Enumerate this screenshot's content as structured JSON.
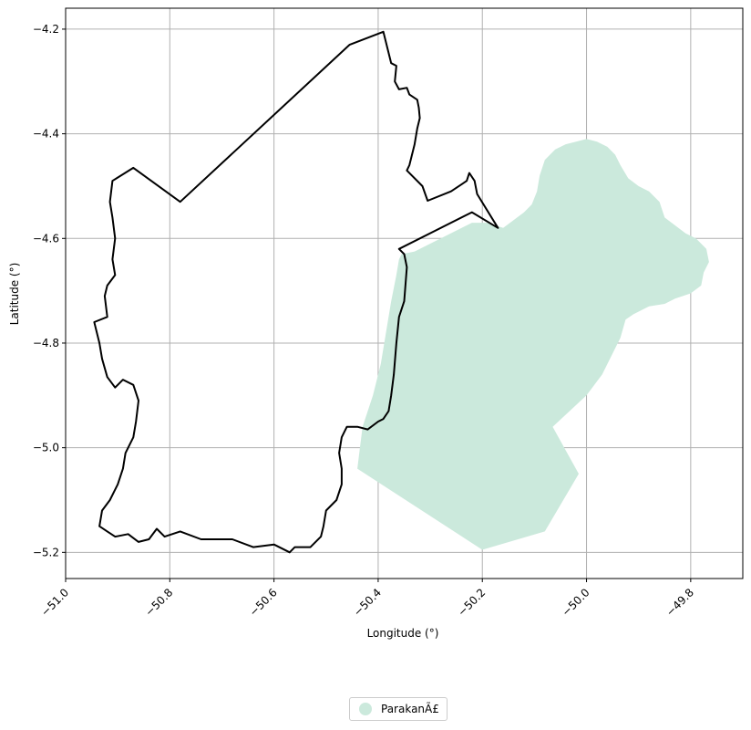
{
  "chart_data": {
    "type": "map",
    "xlabel": "Longitude (°)",
    "ylabel": "Latitude (°)",
    "xlim": [
      -51.0,
      -49.7
    ],
    "ylim": [
      -5.25,
      -4.16
    ],
    "x_ticks": [
      -51.0,
      -50.8,
      -50.6,
      -50.4,
      -50.2,
      -50.0,
      -49.8
    ],
    "x_tick_labels": [
      "−51.0",
      "−50.8",
      "−50.6",
      "−50.4",
      "−50.2",
      "−50.0",
      "−49.8"
    ],
    "y_ticks": [
      -4.2,
      -4.4,
      -4.6,
      -4.8,
      -5.0,
      -5.2
    ],
    "y_tick_labels": [
      "−4.2",
      "−4.4",
      "−4.6",
      "−4.8",
      "−5.0",
      "−5.2"
    ],
    "grid": true,
    "legend_position": "bottom-center",
    "legend": [
      {
        "label": "ParakanÃ£",
        "color": "#cbe9dc"
      }
    ],
    "outline_color": "#000000",
    "outline_polygon": [
      [
        -50.39,
        -4.205
      ],
      [
        -50.375,
        -4.265
      ],
      [
        -50.365,
        -4.27
      ],
      [
        -50.368,
        -4.3
      ],
      [
        -50.36,
        -4.315
      ],
      [
        -50.345,
        -4.312
      ],
      [
        -50.34,
        -4.325
      ],
      [
        -50.325,
        -4.335
      ],
      [
        -50.322,
        -4.35
      ],
      [
        -50.32,
        -4.37
      ],
      [
        -50.325,
        -4.39
      ],
      [
        -50.33,
        -4.42
      ],
      [
        -50.34,
        -4.46
      ],
      [
        -50.345,
        -4.47
      ],
      [
        -50.315,
        -4.5
      ],
      [
        -50.305,
        -4.528
      ],
      [
        -50.26,
        -4.51
      ],
      [
        -50.23,
        -4.49
      ],
      [
        -50.225,
        -4.475
      ],
      [
        -50.215,
        -4.49
      ],
      [
        -50.21,
        -4.515
      ],
      [
        -50.17,
        -4.58
      ],
      [
        -50.22,
        -4.55
      ],
      [
        -50.36,
        -4.62
      ],
      [
        -50.35,
        -4.63
      ],
      [
        -50.345,
        -4.655
      ],
      [
        -50.35,
        -4.72
      ],
      [
        -50.36,
        -4.75
      ],
      [
        -50.365,
        -4.8
      ],
      [
        -50.37,
        -4.86
      ],
      [
        -50.375,
        -4.9
      ],
      [
        -50.38,
        -4.93
      ],
      [
        -50.39,
        -4.945
      ],
      [
        -50.4,
        -4.95
      ],
      [
        -50.42,
        -4.965
      ],
      [
        -50.44,
        -4.96
      ],
      [
        -50.46,
        -4.96
      ],
      [
        -50.47,
        -4.98
      ],
      [
        -50.475,
        -5.01
      ],
      [
        -50.47,
        -5.04
      ],
      [
        -50.47,
        -5.07
      ],
      [
        -50.48,
        -5.1
      ],
      [
        -50.5,
        -5.12
      ],
      [
        -50.505,
        -5.15
      ],
      [
        -50.51,
        -5.17
      ],
      [
        -50.53,
        -5.19
      ],
      [
        -50.56,
        -5.19
      ],
      [
        -50.57,
        -5.2
      ],
      [
        -50.6,
        -5.185
      ],
      [
        -50.64,
        -5.19
      ],
      [
        -50.68,
        -5.175
      ],
      [
        -50.74,
        -5.175
      ],
      [
        -50.78,
        -5.16
      ],
      [
        -50.81,
        -5.17
      ],
      [
        -50.825,
        -5.155
      ],
      [
        -50.84,
        -5.175
      ],
      [
        -50.86,
        -5.18
      ],
      [
        -50.88,
        -5.165
      ],
      [
        -50.905,
        -5.17
      ],
      [
        -50.92,
        -5.16
      ],
      [
        -50.935,
        -5.15
      ],
      [
        -50.93,
        -5.12
      ],
      [
        -50.915,
        -5.1
      ],
      [
        -50.9,
        -5.07
      ],
      [
        -50.89,
        -5.04
      ],
      [
        -50.885,
        -5.01
      ],
      [
        -50.87,
        -4.98
      ],
      [
        -50.865,
        -4.95
      ],
      [
        -50.86,
        -4.91
      ],
      [
        -50.87,
        -4.88
      ],
      [
        -50.89,
        -4.87
      ],
      [
        -50.905,
        -4.885
      ],
      [
        -50.92,
        -4.865
      ],
      [
        -50.93,
        -4.83
      ],
      [
        -50.935,
        -4.8
      ],
      [
        -50.945,
        -4.76
      ],
      [
        -50.92,
        -4.75
      ],
      [
        -50.925,
        -4.71
      ],
      [
        -50.92,
        -4.69
      ],
      [
        -50.905,
        -4.67
      ],
      [
        -50.91,
        -4.64
      ],
      [
        -50.905,
        -4.6
      ],
      [
        -50.91,
        -4.56
      ],
      [
        -50.915,
        -4.53
      ],
      [
        -50.91,
        -4.49
      ],
      [
        -50.87,
        -4.465
      ],
      [
        -50.78,
        -4.53
      ],
      [
        -50.455,
        -4.23
      ],
      [
        -50.39,
        -4.205
      ]
    ],
    "regions": [
      {
        "name": "ParakanÃ£",
        "color": "#cbe9dc",
        "polygon": [
          [
            -50.355,
            -4.63
          ],
          [
            -50.33,
            -4.625
          ],
          [
            -50.22,
            -4.57
          ],
          [
            -50.19,
            -4.57
          ],
          [
            -50.16,
            -4.58
          ],
          [
            -50.14,
            -4.565
          ],
          [
            -50.12,
            -4.55
          ],
          [
            -50.105,
            -4.535
          ],
          [
            -50.095,
            -4.51
          ],
          [
            -50.09,
            -4.48
          ],
          [
            -50.08,
            -4.45
          ],
          [
            -50.06,
            -4.43
          ],
          [
            -50.04,
            -4.42
          ],
          [
            -50.02,
            -4.415
          ],
          [
            -50.0,
            -4.41
          ],
          [
            -49.98,
            -4.415
          ],
          [
            -49.96,
            -4.425
          ],
          [
            -49.945,
            -4.44
          ],
          [
            -49.935,
            -4.46
          ],
          [
            -49.92,
            -4.485
          ],
          [
            -49.9,
            -4.5
          ],
          [
            -49.88,
            -4.51
          ],
          [
            -49.86,
            -4.53
          ],
          [
            -49.85,
            -4.56
          ],
          [
            -49.83,
            -4.575
          ],
          [
            -49.81,
            -4.59
          ],
          [
            -49.79,
            -4.6
          ],
          [
            -49.77,
            -4.62
          ],
          [
            -49.765,
            -4.645
          ],
          [
            -49.775,
            -4.665
          ],
          [
            -49.78,
            -4.69
          ],
          [
            -49.8,
            -4.705
          ],
          [
            -49.83,
            -4.715
          ],
          [
            -49.85,
            -4.725
          ],
          [
            -49.88,
            -4.73
          ],
          [
            -49.91,
            -4.745
          ],
          [
            -49.925,
            -4.755
          ],
          [
            -49.935,
            -4.79
          ],
          [
            -49.97,
            -4.86
          ],
          [
            -50.0,
            -4.9
          ],
          [
            -50.065,
            -4.96
          ],
          [
            -50.015,
            -5.05
          ],
          [
            -50.08,
            -5.16
          ],
          [
            -50.2,
            -5.195
          ],
          [
            -50.44,
            -5.04
          ],
          [
            -50.435,
            -5.0
          ],
          [
            -50.43,
            -4.96
          ],
          [
            -50.41,
            -4.9
          ],
          [
            -50.395,
            -4.84
          ],
          [
            -50.385,
            -4.78
          ],
          [
            -50.375,
            -4.72
          ],
          [
            -50.365,
            -4.67
          ],
          [
            -50.36,
            -4.64
          ],
          [
            -50.355,
            -4.63
          ]
        ]
      }
    ]
  }
}
